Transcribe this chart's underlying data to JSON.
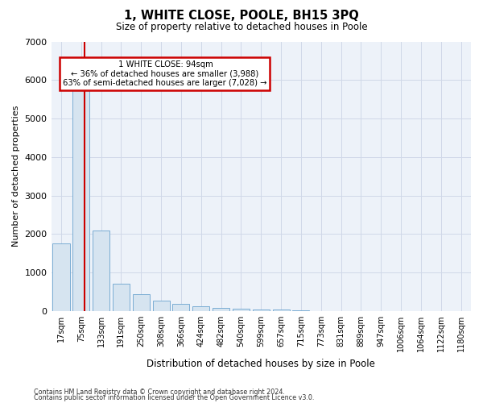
{
  "title": "1, WHITE CLOSE, POOLE, BH15 3PQ",
  "subtitle": "Size of property relative to detached houses in Poole",
  "xlabel": "Distribution of detached houses by size in Poole",
  "ylabel": "Number of detached properties",
  "categories": [
    "17sqm",
    "75sqm",
    "133sqm",
    "191sqm",
    "250sqm",
    "308sqm",
    "366sqm",
    "424sqm",
    "482sqm",
    "540sqm",
    "599sqm",
    "657sqm",
    "715sqm",
    "773sqm",
    "831sqm",
    "889sqm",
    "947sqm",
    "1006sqm",
    "1064sqm",
    "1122sqm",
    "1180sqm"
  ],
  "values": [
    1750,
    6350,
    2100,
    700,
    440,
    270,
    180,
    120,
    80,
    55,
    40,
    30,
    20,
    0,
    0,
    0,
    0,
    0,
    0,
    0,
    0
  ],
  "bar_color": "#d6e4f0",
  "bar_edge_color": "#7aadd4",
  "red_line_x": 1.15,
  "property_label": "1 WHITE CLOSE: 94sqm",
  "pct_smaller": 36,
  "n_smaller": 3988,
  "pct_larger_semi": 63,
  "n_larger_semi": 7028,
  "annotation_box_color": "#ffffff",
  "annotation_box_edge": "#cc0000",
  "red_line_color": "#cc0000",
  "grid_color": "#d0d8e8",
  "background_color": "#edf2f9",
  "footer_line1": "Contains HM Land Registry data © Crown copyright and database right 2024.",
  "footer_line2": "Contains public sector information licensed under the Open Government Licence v3.0.",
  "ylim": [
    0,
    7000
  ],
  "yticks": [
    0,
    1000,
    2000,
    3000,
    4000,
    5000,
    6000,
    7000
  ]
}
